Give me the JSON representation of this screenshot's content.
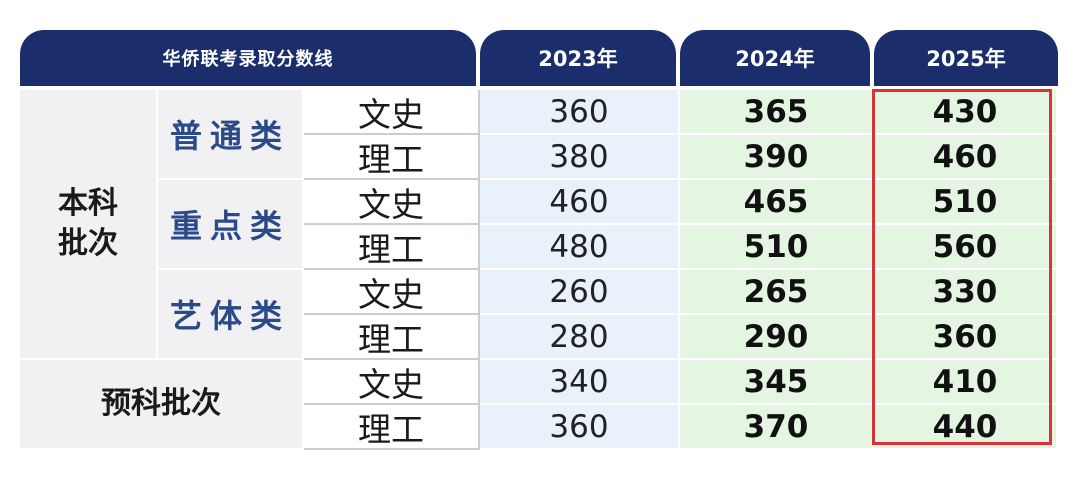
{
  "table": {
    "title": "华侨联考录取分数线",
    "years": [
      "2023年",
      "2024年",
      "2025年"
    ],
    "groups": [
      {
        "label": "本科批次",
        "label_lines": [
          "本科",
          "批次"
        ],
        "subgroups": [
          {
            "label": "普通类",
            "rows": [
              {
                "kind": "文史",
                "v2023": "360",
                "v2024": "365",
                "v2025": "430"
              },
              {
                "kind": "理工",
                "v2023": "380",
                "v2024": "390",
                "v2025": "460"
              }
            ]
          },
          {
            "label": "重点类",
            "rows": [
              {
                "kind": "文史",
                "v2023": "460",
                "v2024": "465",
                "v2025": "510"
              },
              {
                "kind": "理工",
                "v2023": "480",
                "v2024": "510",
                "v2025": "560"
              }
            ]
          },
          {
            "label": "艺体类",
            "rows": [
              {
                "kind": "文史",
                "v2023": "260",
                "v2024": "265",
                "v2025": "330"
              },
              {
                "kind": "理工",
                "v2023": "280",
                "v2024": "290",
                "v2025": "360"
              }
            ]
          }
        ]
      },
      {
        "label": "预科批次",
        "rows": [
          {
            "kind": "文史",
            "v2023": "340",
            "v2024": "345",
            "v2025": "410"
          },
          {
            "kind": "理工",
            "v2023": "360",
            "v2024": "370",
            "v2025": "440"
          }
        ]
      }
    ]
  },
  "colors": {
    "header_bg": "#1b2d6b",
    "highlight_border": "#d9333a",
    "subgroup_text": "#2a4a8a",
    "col_2023_bg": "#e9f1fa",
    "col_2024_2025_bg": "#e4f5e2"
  }
}
